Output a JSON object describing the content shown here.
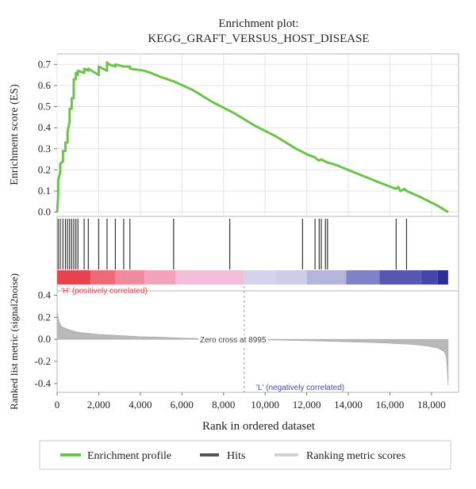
{
  "chart_data": {
    "type": "line",
    "title": "Enrichment plot:",
    "subtitle": "KEGG_GRAFT_VERSUS_HOST_DISEASE",
    "xlabel": "Rank in ordered dataset",
    "xlim": [
      0,
      19300
    ],
    "x_ticks": [
      0,
      2000,
      4000,
      6000,
      8000,
      10000,
      12000,
      14000,
      16000,
      18000
    ],
    "x_tick_labels": [
      "0",
      "2,000",
      "4,000",
      "6,000",
      "8,000",
      "10,000",
      "12,000",
      "14,000",
      "16,000",
      "18,000"
    ],
    "grid": true,
    "enrichment_panel": {
      "ylabel": "Enrichment score (ES)",
      "ylim": [
        -0.02,
        0.75
      ],
      "y_ticks": [
        0.0,
        0.1,
        0.2,
        0.3,
        0.4,
        0.5,
        0.6,
        0.7
      ],
      "y_tick_labels": [
        "0.0",
        "0.1",
        "0.2",
        "0.3",
        "0.4",
        "0.5",
        "0.6",
        "0.7"
      ],
      "series": [
        {
          "name": "Enrichment profile",
          "color": "#6cc24a",
          "x": [
            0,
            50,
            50,
            150,
            150,
            280,
            280,
            400,
            400,
            500,
            500,
            600,
            600,
            700,
            700,
            800,
            800,
            900,
            900,
            1000,
            1000,
            1300,
            1300,
            1500,
            1500,
            2000,
            2000,
            2400,
            2400,
            2500,
            2500,
            2800,
            2800,
            3200,
            3200,
            3500,
            3500,
            4200,
            4500,
            5000,
            5600,
            6500,
            7500,
            8500,
            9500,
            10500,
            11500,
            12100,
            12400,
            12500,
            12600,
            12700,
            12900,
            13000,
            13200,
            13500,
            14500,
            15500,
            16300,
            16400,
            16500,
            16700,
            16800,
            17500,
            18000,
            18300,
            18800
          ],
          "values": [
            0.0,
            0.08,
            0.15,
            0.19,
            0.23,
            0.24,
            0.29,
            0.29,
            0.33,
            0.33,
            0.38,
            0.43,
            0.49,
            0.49,
            0.54,
            0.54,
            0.63,
            0.63,
            0.66,
            0.65,
            0.67,
            0.66,
            0.68,
            0.67,
            0.68,
            0.65,
            0.69,
            0.67,
            0.71,
            0.7,
            0.7,
            0.69,
            0.7,
            0.69,
            0.69,
            0.69,
            0.68,
            0.67,
            0.66,
            0.64,
            0.62,
            0.58,
            0.52,
            0.47,
            0.41,
            0.36,
            0.3,
            0.27,
            0.26,
            0.25,
            0.245,
            0.25,
            0.24,
            0.235,
            0.23,
            0.22,
            0.18,
            0.14,
            0.11,
            0.12,
            0.1,
            0.11,
            0.1,
            0.07,
            0.045,
            0.03,
            0.0
          ]
        }
      ]
    },
    "hits_panel": {
      "label": "Hits",
      "hit_color": "#333333",
      "hit_ranks": [
        50,
        150,
        280,
        400,
        500,
        600,
        700,
        800,
        900,
        1000,
        1300,
        1500,
        2000,
        2400,
        2800,
        3200,
        3500,
        5600,
        8300,
        11800,
        12400,
        12600,
        12700,
        12900,
        13000,
        16300,
        16800
      ]
    },
    "color_bar": {
      "segments": [
        {
          "x_start": 0,
          "x_end": 1600,
          "color": "#e8424f"
        },
        {
          "x_start": 1600,
          "x_end": 2800,
          "color": "#ef6a79"
        },
        {
          "x_start": 2800,
          "x_end": 4200,
          "color": "#f08aa0"
        },
        {
          "x_start": 4200,
          "x_end": 5700,
          "color": "#f3a2bc"
        },
        {
          "x_start": 5700,
          "x_end": 8995,
          "color": "#f4bdd8"
        },
        {
          "x_start": 8995,
          "x_end": 10500,
          "color": "#d4d3eb"
        },
        {
          "x_start": 10500,
          "x_end": 12000,
          "color": "#cdcde6"
        },
        {
          "x_start": 12000,
          "x_end": 13900,
          "color": "#b4b4dd"
        },
        {
          "x_start": 13900,
          "x_end": 15500,
          "color": "#7f81c9"
        },
        {
          "x_start": 15500,
          "x_end": 17500,
          "color": "#5656b4"
        },
        {
          "x_start": 17500,
          "x_end": 18300,
          "color": "#4446a8"
        },
        {
          "x_start": 18300,
          "x_end": 18800,
          "color": "#2c2e94"
        }
      ]
    },
    "ranked_panel": {
      "ylabel": "Ranked list metric (signal2noise)",
      "ylim": [
        -0.48,
        0.44
      ],
      "y_ticks": [
        0.4,
        0.2,
        0.0,
        -0.2,
        -0.4
      ],
      "y_tick_labels": [
        "0.4",
        "0.2",
        "0.0",
        "-0.2",
        "-0.4"
      ],
      "series": [
        {
          "name": "Ranking metric scores",
          "color": "#b9b9b9",
          "x": [
            0,
            50,
            100,
            200,
            400,
            700,
            1000,
            1500,
            2000,
            3000,
            4000,
            5000,
            6000,
            7000,
            8000,
            8995,
            10000,
            11000,
            12000,
            13000,
            14000,
            15000,
            16000,
            17000,
            17800,
            18300,
            18600,
            18700,
            18750,
            18800
          ],
          "values": [
            0.26,
            0.2,
            0.16,
            0.12,
            0.1,
            0.08,
            0.065,
            0.055,
            0.045,
            0.035,
            0.025,
            0.02,
            0.012,
            0.007,
            0.003,
            0.0,
            -0.004,
            -0.008,
            -0.012,
            -0.017,
            -0.022,
            -0.028,
            -0.035,
            -0.045,
            -0.06,
            -0.08,
            -0.11,
            -0.15,
            -0.25,
            -0.42
          ]
        }
      ],
      "annotations": {
        "positive_label": "'H' (positively correlated)",
        "negative_label": "'L' (negatively correlated)",
        "zero_cross_label": "Zero cross at 8995",
        "zero_cross_rank": 8995,
        "positive_color": "#e8424f",
        "negative_color": "#4446a8"
      }
    },
    "legend": {
      "placement": "bottom",
      "items": [
        {
          "label": "Enrichment profile",
          "color": "#6cc24a",
          "kind": "line"
        },
        {
          "label": "Hits",
          "color": "#555555",
          "kind": "line"
        },
        {
          "label": "Ranking metric scores",
          "color": "#d0d0d0",
          "kind": "line"
        }
      ]
    }
  }
}
